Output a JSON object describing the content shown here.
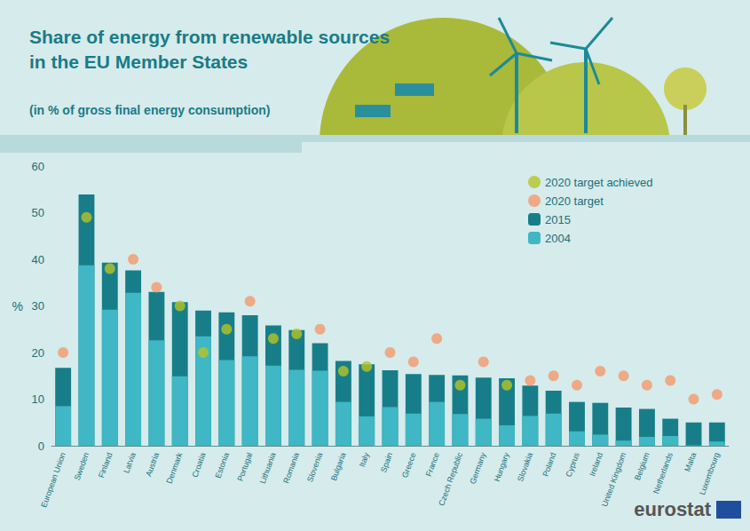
{
  "chart_data": {
    "type": "bar",
    "title": "Share of energy from renewable sources\nin the EU Member States",
    "subtitle": "(in % of gross final energy consumption)",
    "y_label": "%",
    "source": "eurostat",
    "categories": [
      "European Union",
      "Sweden",
      "Finland",
      "Latvia",
      "Austria",
      "Denmark",
      "Croatia",
      "Estonia",
      "Portugal",
      "Lithuania",
      "Romania",
      "Slovenia",
      "Bulgaria",
      "Italy",
      "Spain",
      "Greece",
      "France",
      "Czech Republic",
      "Germany",
      "Hungary",
      "Slovakia",
      "Poland",
      "Cyprus",
      "Ireland",
      "United Kingdom",
      "Belgium",
      "Netherlands",
      "Malta",
      "Luxembourg"
    ],
    "series": [
      {
        "name": "2020 target achieved",
        "type": "scatter",
        "color": "#b5c424",
        "values": [
          null,
          49,
          38,
          null,
          null,
          30,
          20,
          25,
          null,
          23,
          24,
          null,
          16,
          17,
          null,
          null,
          null,
          13,
          null,
          13,
          null,
          null,
          null,
          null,
          null,
          null,
          null,
          null,
          null
        ]
      },
      {
        "name": "2020 target",
        "type": "scatter",
        "color": "#f39a6b",
        "values": [
          20,
          null,
          null,
          40,
          34,
          null,
          null,
          null,
          31,
          null,
          null,
          25,
          null,
          null,
          20,
          18,
          23,
          null,
          18,
          null,
          14,
          15,
          13,
          16,
          15,
          13,
          14,
          10,
          11
        ]
      },
      {
        "name": "2015",
        "type": "bar",
        "color": "#177e89",
        "values": [
          16.7,
          53.9,
          39.3,
          37.6,
          33.0,
          30.8,
          29.0,
          28.6,
          28.0,
          25.8,
          24.8,
          22.0,
          18.2,
          17.5,
          16.2,
          15.4,
          15.2,
          15.1,
          14.6,
          14.5,
          12.9,
          11.8,
          9.4,
          9.2,
          8.2,
          7.9,
          5.8,
          5.0,
          5.0
        ]
      },
      {
        "name": "2004",
        "type": "bar",
        "color": "#3fb7c4",
        "values": [
          8.5,
          38.7,
          29.2,
          32.8,
          22.6,
          14.9,
          23.5,
          18.4,
          19.2,
          17.2,
          16.3,
          16.1,
          9.4,
          6.3,
          8.3,
          6.9,
          9.4,
          6.8,
          5.8,
          4.4,
          6.4,
          6.9,
          3.1,
          2.4,
          1.1,
          1.9,
          2.1,
          0.1,
          0.9
        ]
      }
    ],
    "ylim": [
      0,
      60
    ],
    "yticks": [
      0,
      10,
      20,
      30,
      40,
      50,
      60
    ],
    "grid": false,
    "legend": "top-right"
  }
}
